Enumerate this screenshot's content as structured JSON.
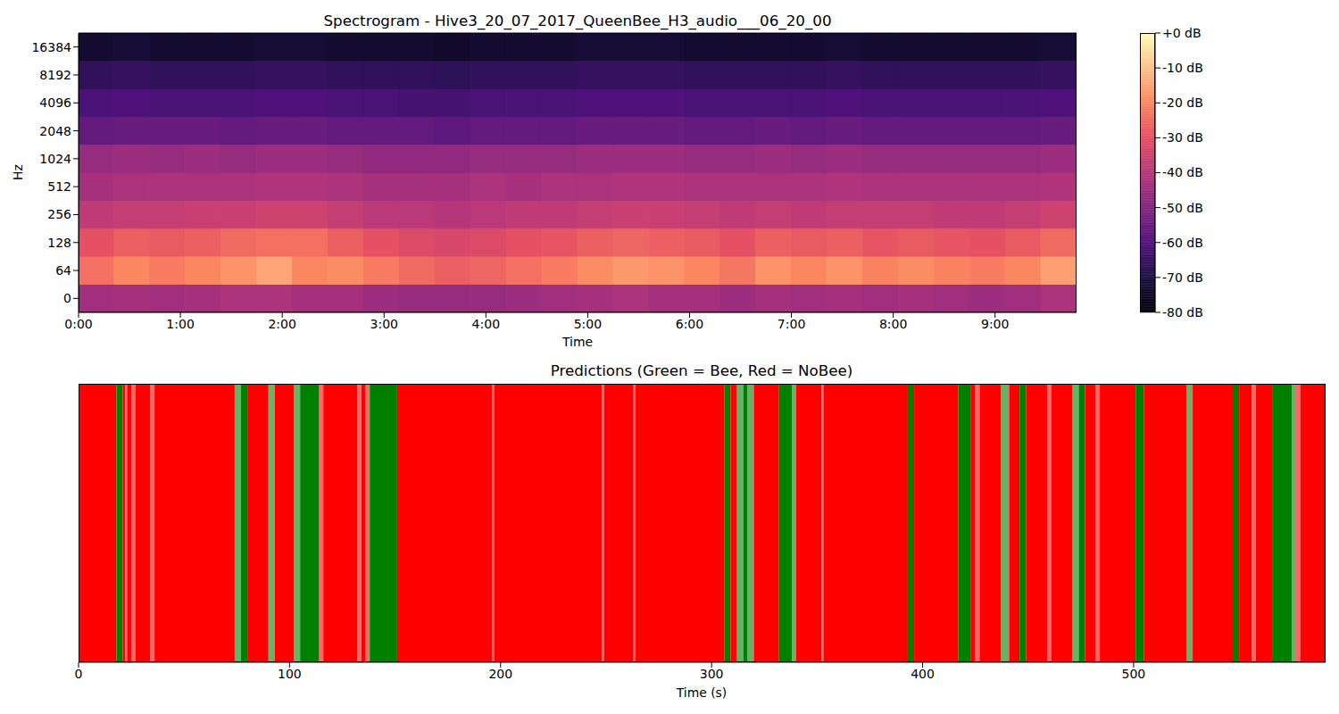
{
  "chart_data": [
    {
      "type": "heatmap",
      "title": "Spectrogram - Hive3_20_07_2017_QueenBee_H3_audio___06_20_00",
      "xlabel": "Time",
      "ylabel": "Hz",
      "xlim": [
        0,
        588
      ],
      "xticks": [
        {
          "value": 0,
          "label": "0:00"
        },
        {
          "value": 60,
          "label": "1:00"
        },
        {
          "value": 120,
          "label": "2:00"
        },
        {
          "value": 180,
          "label": "3:00"
        },
        {
          "value": 240,
          "label": "4:00"
        },
        {
          "value": 300,
          "label": "5:00"
        },
        {
          "value": 360,
          "label": "6:00"
        },
        {
          "value": 420,
          "label": "7:00"
        },
        {
          "value": 480,
          "label": "8:00"
        },
        {
          "value": 540,
          "label": "9:00"
        }
      ],
      "x_bins": [
        0,
        21,
        42,
        63,
        84,
        105,
        126,
        147,
        168,
        189,
        210,
        231,
        252,
        273,
        294,
        315,
        336,
        357,
        378,
        399,
        420,
        441,
        462,
        483,
        504,
        525,
        546,
        567,
        588
      ],
      "y": [
        0,
        64,
        128,
        256,
        512,
        1024,
        2048,
        4096,
        8192,
        16384
      ],
      "z": [
        [
          -44,
          -43,
          -44,
          -43,
          -42,
          -42,
          -43,
          -43,
          -45,
          -46,
          -46,
          -46,
          -45,
          -44,
          -43,
          -42,
          -43,
          -43,
          -45,
          -43,
          -44,
          -43,
          -44,
          -43,
          -44,
          -45,
          -44,
          -42
        ],
        [
          -24,
          -20,
          -22,
          -20,
          -18,
          -15,
          -20,
          -19,
          -22,
          -25,
          -27,
          -26,
          -24,
          -22,
          -19,
          -17,
          -18,
          -20,
          -23,
          -18,
          -20,
          -18,
          -21,
          -19,
          -21,
          -22,
          -20,
          -16
        ],
        [
          -30,
          -27,
          -28,
          -27,
          -25,
          -24,
          -24,
          -27,
          -30,
          -32,
          -33,
          -32,
          -30,
          -29,
          -27,
          -26,
          -27,
          -28,
          -30,
          -27,
          -28,
          -27,
          -29,
          -28,
          -29,
          -30,
          -28,
          -25
        ],
        [
          -38,
          -37,
          -37,
          -36,
          -36,
          -35,
          -35,
          -37,
          -39,
          -39,
          -40,
          -39,
          -38,
          -38,
          -37,
          -36,
          -36,
          -37,
          -38,
          -37,
          -38,
          -37,
          -37,
          -37,
          -38,
          -38,
          -37,
          -35
        ],
        [
          -43,
          -42,
          -42,
          -42,
          -42,
          -41,
          -41,
          -42,
          -43,
          -43,
          -43,
          -42,
          -43,
          -42,
          -42,
          -41,
          -41,
          -42,
          -42,
          -42,
          -42,
          -41,
          -42,
          -42,
          -42,
          -42,
          -42,
          -41
        ],
        [
          -46,
          -45,
          -46,
          -45,
          -46,
          -45,
          -45,
          -46,
          -47,
          -47,
          -47,
          -46,
          -46,
          -46,
          -45,
          -45,
          -45,
          -46,
          -46,
          -45,
          -46,
          -45,
          -46,
          -46,
          -46,
          -46,
          -46,
          -45
        ],
        [
          -56,
          -55,
          -55,
          -55,
          -56,
          -55,
          -55,
          -56,
          -56,
          -56,
          -57,
          -56,
          -56,
          -56,
          -55,
          -55,
          -55,
          -56,
          -56,
          -55,
          -56,
          -55,
          -56,
          -56,
          -56,
          -56,
          -56,
          -55
        ],
        [
          -61,
          -60,
          -61,
          -61,
          -61,
          -60,
          -60,
          -61,
          -61,
          -62,
          -62,
          -61,
          -61,
          -61,
          -60,
          -60,
          -60,
          -61,
          -61,
          -61,
          -61,
          -60,
          -61,
          -61,
          -61,
          -61,
          -61,
          -60
        ],
        [
          -66,
          -65,
          -66,
          -66,
          -66,
          -65,
          -65,
          -66,
          -66,
          -66,
          -67,
          -66,
          -66,
          -66,
          -65,
          -65,
          -65,
          -66,
          -66,
          -66,
          -66,
          -65,
          -66,
          -66,
          -66,
          -66,
          -66,
          -65
        ],
        [
          -73,
          -72,
          -73,
          -73,
          -73,
          -72,
          -72,
          -73,
          -73,
          -73,
          -74,
          -73,
          -73,
          -73,
          -72,
          -72,
          -72,
          -73,
          -73,
          -73,
          -73,
          -72,
          -73,
          -73,
          -73,
          -73,
          -73,
          -72
        ]
      ],
      "color": "magma",
      "zlim": [
        -80,
        0
      ],
      "zticks": [
        {
          "value": 0,
          "label": "+0 dB"
        },
        {
          "value": -10,
          "label": "-10 dB"
        },
        {
          "value": -20,
          "label": "-20 dB"
        },
        {
          "value": -30,
          "label": "-30 dB"
        },
        {
          "value": -40,
          "label": "-40 dB"
        },
        {
          "value": -50,
          "label": "-50 dB"
        },
        {
          "value": -60,
          "label": "-60 dB"
        },
        {
          "value": -70,
          "label": "-70 dB"
        },
        {
          "value": -80,
          "label": "-80 dB"
        }
      ]
    },
    {
      "type": "bar",
      "orientation": "horizontal",
      "stacked": true,
      "tick_labels": "x",
      "title": "Predictions (Green = Bee, Red = NoBee)",
      "xlabel": "Time (s)",
      "xlim": [
        0,
        591
      ],
      "xticks": [
        0,
        100,
        200,
        300,
        400,
        500
      ],
      "x_bins": [
        0,
        18,
        21,
        22,
        23,
        25,
        27,
        34,
        36,
        74,
        77,
        80,
        90,
        93,
        102,
        105,
        114,
        116,
        132,
        134,
        136,
        138,
        151,
        196,
        197,
        248,
        249,
        263,
        264,
        306,
        309,
        312,
        315,
        317,
        320,
        332,
        338,
        340,
        352,
        353,
        393,
        396,
        417,
        423,
        425,
        427,
        437,
        441,
        446,
        449,
        459,
        461,
        471,
        474,
        477,
        482,
        484,
        501,
        505,
        525,
        528,
        547,
        550,
        556,
        558,
        566,
        575,
        577,
        579,
        591
      ],
      "classes": [
        "NoBee",
        "Bee",
        "NoBee",
        "NoBee",
        "NoBee",
        "NoBee",
        "NoBee",
        "NoBee",
        "NoBee",
        "Bee",
        "Bee",
        "NoBee",
        "Bee",
        "NoBee",
        "Bee",
        "Bee",
        "NoBee",
        "NoBee",
        "NoBee",
        "NoBee",
        "NoBee",
        "Bee",
        "NoBee",
        "NoBee",
        "NoBee",
        "NoBee",
        "NoBee",
        "NoBee",
        "NoBee",
        "Bee",
        "NoBee",
        "Bee",
        "Bee",
        "Bee",
        "NoBee",
        "Bee",
        "Bee",
        "NoBee",
        "NoBee",
        "NoBee",
        "Bee",
        "NoBee",
        "Bee",
        "NoBee",
        "NoBee",
        "NoBee",
        "Bee",
        "NoBee",
        "Bee",
        "NoBee",
        "NoBee",
        "NoBee",
        "Bee",
        "Bee",
        "NoBee",
        "NoBee",
        "NoBee",
        "Bee",
        "NoBee",
        "Bee",
        "NoBee",
        "Bee",
        "NoBee",
        "NoBee",
        "NoBee",
        "Bee",
        "Bee",
        "NoBee",
        "NoBee"
      ],
      "probability": [
        1,
        1,
        1,
        0.6,
        1,
        0.6,
        1,
        0.6,
        1,
        0.6,
        1,
        1,
        0.6,
        1,
        0.6,
        1,
        0.6,
        1,
        0.6,
        1,
        0.6,
        1,
        1,
        0.6,
        1,
        0.6,
        1,
        0.6,
        1,
        1,
        1,
        0.6,
        1,
        0.6,
        1,
        1,
        0.6,
        1,
        0.6,
        1,
        1,
        1,
        1,
        1,
        0.6,
        1,
        0.6,
        1,
        1,
        1,
        0.6,
        1,
        0.6,
        1,
        1,
        0.6,
        1,
        1,
        1,
        0.6,
        1,
        1,
        1,
        0.6,
        1,
        1,
        0.6,
        0.6,
        1
      ],
      "color": {
        "Bee": "#008000",
        "NoBee": "#ff0000"
      }
    }
  ]
}
